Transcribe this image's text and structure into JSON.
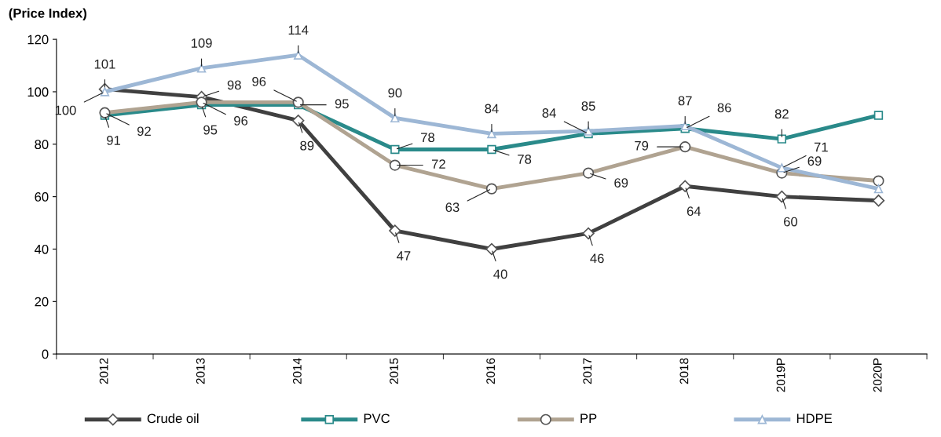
{
  "chart_data": {
    "type": "line",
    "ylabel": "(Price Index)",
    "categories": [
      "2012",
      "2013",
      "2014",
      "2015",
      "2016",
      "2017",
      "2018",
      "2019P",
      "2020P"
    ],
    "series": [
      {
        "name": "Crude oil",
        "color": "#404040",
        "marker": "diamond",
        "values": [
          101,
          98,
          89,
          47,
          40,
          46,
          64,
          60,
          58.5
        ],
        "value_labels": [
          "101",
          "98",
          "89",
          "47",
          "40",
          "46",
          "64",
          "60",
          null
        ]
      },
      {
        "name": "PVC",
        "color": "#2a8a8a",
        "marker": "square",
        "values": [
          91,
          95,
          95,
          78,
          78,
          84,
          86,
          82,
          91
        ],
        "value_labels": [
          "91",
          "95",
          "95",
          "78",
          "78",
          "84",
          "86",
          "82",
          null
        ]
      },
      {
        "name": "PP",
        "color": "#b0a391",
        "marker": "circle",
        "values": [
          92,
          96,
          96,
          72,
          63,
          69,
          79,
          69,
          66
        ],
        "value_labels": [
          "92",
          "96",
          "96",
          "72",
          "63",
          "69",
          "79",
          "69",
          null
        ]
      },
      {
        "name": "HDPE",
        "color": "#9db7d5",
        "marker": "triangle",
        "values": [
          100,
          109,
          114,
          90,
          84,
          85,
          87,
          71,
          63
        ],
        "value_labels": [
          "100",
          "109",
          "114",
          "90",
          "84",
          "85",
          "87",
          "71",
          null
        ]
      }
    ],
    "ylim": [
      0,
      120
    ],
    "yticks": [
      0,
      20,
      40,
      60,
      80,
      100,
      120
    ],
    "grid": false,
    "legend": "bottom"
  }
}
